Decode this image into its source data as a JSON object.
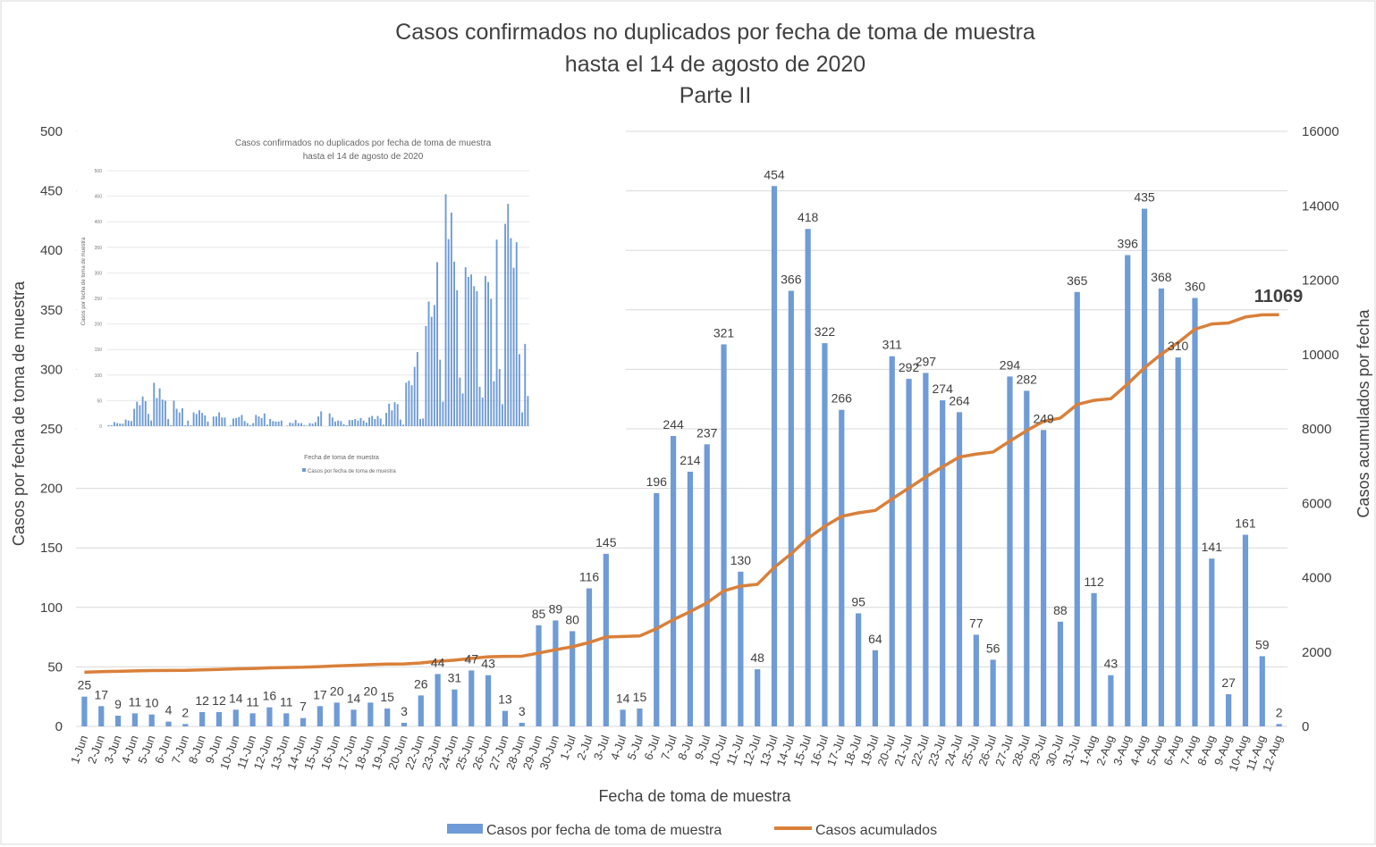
{
  "chart_data": {
    "type": "bar+line",
    "title": [
      "Casos confirmados no duplicados por fecha de toma de muestra",
      "hasta el 14 de agosto de 2020",
      "Parte II"
    ],
    "xlabel": "Fecha de toma de muestra",
    "ylabel": "Casos por fecha de toma de muestra",
    "y2label": "Casos acumulados por fecha",
    "ylim": [
      0,
      500
    ],
    "yticks": [
      0,
      50,
      100,
      150,
      200,
      250,
      300,
      350,
      400,
      450,
      500
    ],
    "y2lim": [
      0,
      16000
    ],
    "y2ticks": [
      0,
      2000,
      4000,
      6000,
      8000,
      10000,
      12000,
      14000,
      16000
    ],
    "grid": true,
    "legend_position": "bottom",
    "colors": {
      "bars": "#6f9bd6",
      "line": "#d9803a",
      "text": "#404040",
      "grid": "#d9d9d9"
    },
    "categories": [
      "1-Jun",
      "2-Jun",
      "3-Jun",
      "4-Jun",
      "5-Jun",
      "6-Jun",
      "7-Jun",
      "8-Jun",
      "9-Jun",
      "10-Jun",
      "11-Jun",
      "12-Jun",
      "13-Jun",
      "14-Jun",
      "15-Jun",
      "16-Jun",
      "17-Jun",
      "18-Jun",
      "19-Jun",
      "20-Jun",
      "22-Jun",
      "23-Jun",
      "24-Jun",
      "25-Jun",
      "26-Jun",
      "27-Jun",
      "28-Jun",
      "29-Jun",
      "30-Jun",
      "1-Jul",
      "2-Jul",
      "3-Jul",
      "4-Jul",
      "5-Jul",
      "6-Jul",
      "7-Jul",
      "8-Jul",
      "9-Jul",
      "10-Jul",
      "11-Jul",
      "12-Jul",
      "13-Jul",
      "14-Jul",
      "15-Jul",
      "16-Jul",
      "17-Jul",
      "18-Jul",
      "19-Jul",
      "20-Jul",
      "21-Jul",
      "22-Jul",
      "23-Jul",
      "24-Jul",
      "25-Jul",
      "26-Jul",
      "27-Jul",
      "28-Jul",
      "29-Jul",
      "30-Jul",
      "31-Jul",
      "1-Aug",
      "2-Aug",
      "3-Aug",
      "4-Aug",
      "5-Aug",
      "6-Aug",
      "7-Aug",
      "8-Aug",
      "9-Aug",
      "10-Aug",
      "11-Aug",
      "12-Aug"
    ],
    "series": [
      {
        "name": "Casos por fecha de toma de muestra",
        "type": "bar",
        "values": [
          25,
          17,
          9,
          11,
          10,
          4,
          2,
          12,
          12,
          14,
          11,
          16,
          11,
          7,
          17,
          20,
          14,
          20,
          15,
          3,
          26,
          44,
          31,
          47,
          43,
          13,
          3,
          85,
          89,
          80,
          116,
          145,
          14,
          15,
          196,
          244,
          214,
          237,
          321,
          130,
          48,
          454,
          366,
          418,
          322,
          266,
          95,
          64,
          311,
          292,
          297,
          274,
          264,
          77,
          56,
          294,
          282,
          249,
          88,
          365,
          112,
          43,
          396,
          435,
          368,
          310,
          360,
          141,
          27,
          161,
          59,
          2
        ]
      },
      {
        "name": "Casos acumulados",
        "type": "line",
        "axis": "right",
        "values": [
          1455,
          1472,
          1481,
          1492,
          1502,
          1506,
          1508,
          1520,
          1532,
          1546,
          1557,
          1573,
          1584,
          1591,
          1608,
          1628,
          1642,
          1662,
          1677,
          1680,
          1706,
          1750,
          1781,
          1828,
          1871,
          1884,
          1887,
          1972,
          2061,
          2141,
          2257,
          2402,
          2416,
          2431,
          2627,
          2871,
          3085,
          3322,
          3643,
          3773,
          3821,
          4275,
          4641,
          5059,
          5381,
          5647,
          5742,
          5806,
          6117,
          6409,
          6706,
          6980,
          7244,
          7321,
          7377,
          7671,
          7953,
          8202,
          8290,
          8655,
          8767,
          8810,
          9206,
          9641,
          10009,
          10319,
          10679,
          10820,
          10847,
          11008,
          11067,
          11069
        ]
      }
    ],
    "annotation": "11069",
    "inset": {
      "title": [
        "Casos confirmados no duplicados por fecha de toma de muestra",
        "hasta el 14 de agosto de 2020"
      ],
      "xlabel": "Fecha de toma de muestra",
      "ylabel": "Casos por fecha de toma de muestra",
      "yticks": [
        0,
        50,
        100,
        150,
        200,
        250,
        300,
        350,
        400,
        450,
        500
      ],
      "legend": "Casos por fecha de toma de muestra",
      "values": [
        2,
        2,
        8,
        6,
        5,
        5,
        13,
        11,
        10,
        34,
        48,
        41,
        58,
        49,
        24,
        11,
        85,
        55,
        74,
        52,
        50,
        14,
        2,
        50,
        34,
        27,
        35,
        2,
        11,
        2,
        27,
        24,
        31,
        26,
        21,
        9,
        0,
        19,
        19,
        27,
        17,
        17,
        0,
        2,
        15,
        16,
        18,
        22,
        10,
        6,
        2,
        6,
        22,
        19,
        16,
        25,
        3,
        14,
        10,
        9,
        9,
        11,
        0,
        1,
        7,
        6,
        12,
        6,
        6,
        2,
        1,
        6,
        5,
        8,
        19,
        29,
        0,
        0,
        25,
        17,
        9,
        11,
        10,
        4,
        2,
        12,
        12,
        14,
        11,
        16,
        11,
        7,
        17,
        20,
        14,
        20,
        15,
        3,
        26,
        44,
        31,
        47,
        43,
        13,
        3,
        85,
        89,
        80,
        116,
        145,
        14,
        15,
        196,
        244,
        214,
        237,
        321,
        130,
        48,
        454,
        366,
        418,
        322,
        266,
        95,
        64,
        311,
        292,
        297,
        274,
        264,
        77,
        56,
        294,
        282,
        249,
        88,
        365,
        112,
        43,
        396,
        435,
        368,
        310,
        360,
        141,
        27,
        161,
        59
      ]
    }
  }
}
